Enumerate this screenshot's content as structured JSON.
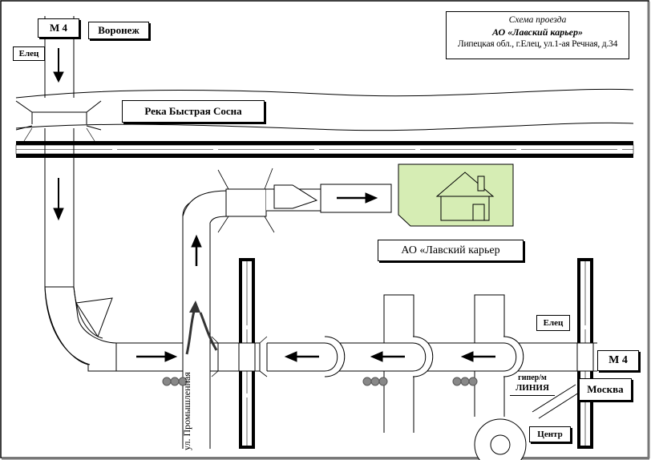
{
  "info_box": {
    "title": "Схема проезда",
    "company": "АО «Лавский карьер»",
    "address": "Липецкая обл., г.Елец, ул.1-ая Речная, д.34"
  },
  "labels": {
    "m4_top": "М 4",
    "voronezh": "Воронеж",
    "elets_top": "Елец",
    "river": "Река  Быстрая Сосна",
    "destination": "АО «Лавский карьер",
    "elets_right": "Елец",
    "m4_right": "М 4",
    "moscow": "Москва",
    "center": "Центр",
    "hypermarket": "гипер/м",
    "hypermarket_name": "ЛИНИЯ",
    "street": "ул. Промышленная"
  },
  "colors": {
    "building_fill": "#d6edb4",
    "traffic_light": "#888888",
    "road": "#ffffff",
    "ink": "#000000"
  },
  "icons": [
    "house-icon",
    "traffic-light-icon",
    "arrow-icon",
    "railway-icon"
  ]
}
